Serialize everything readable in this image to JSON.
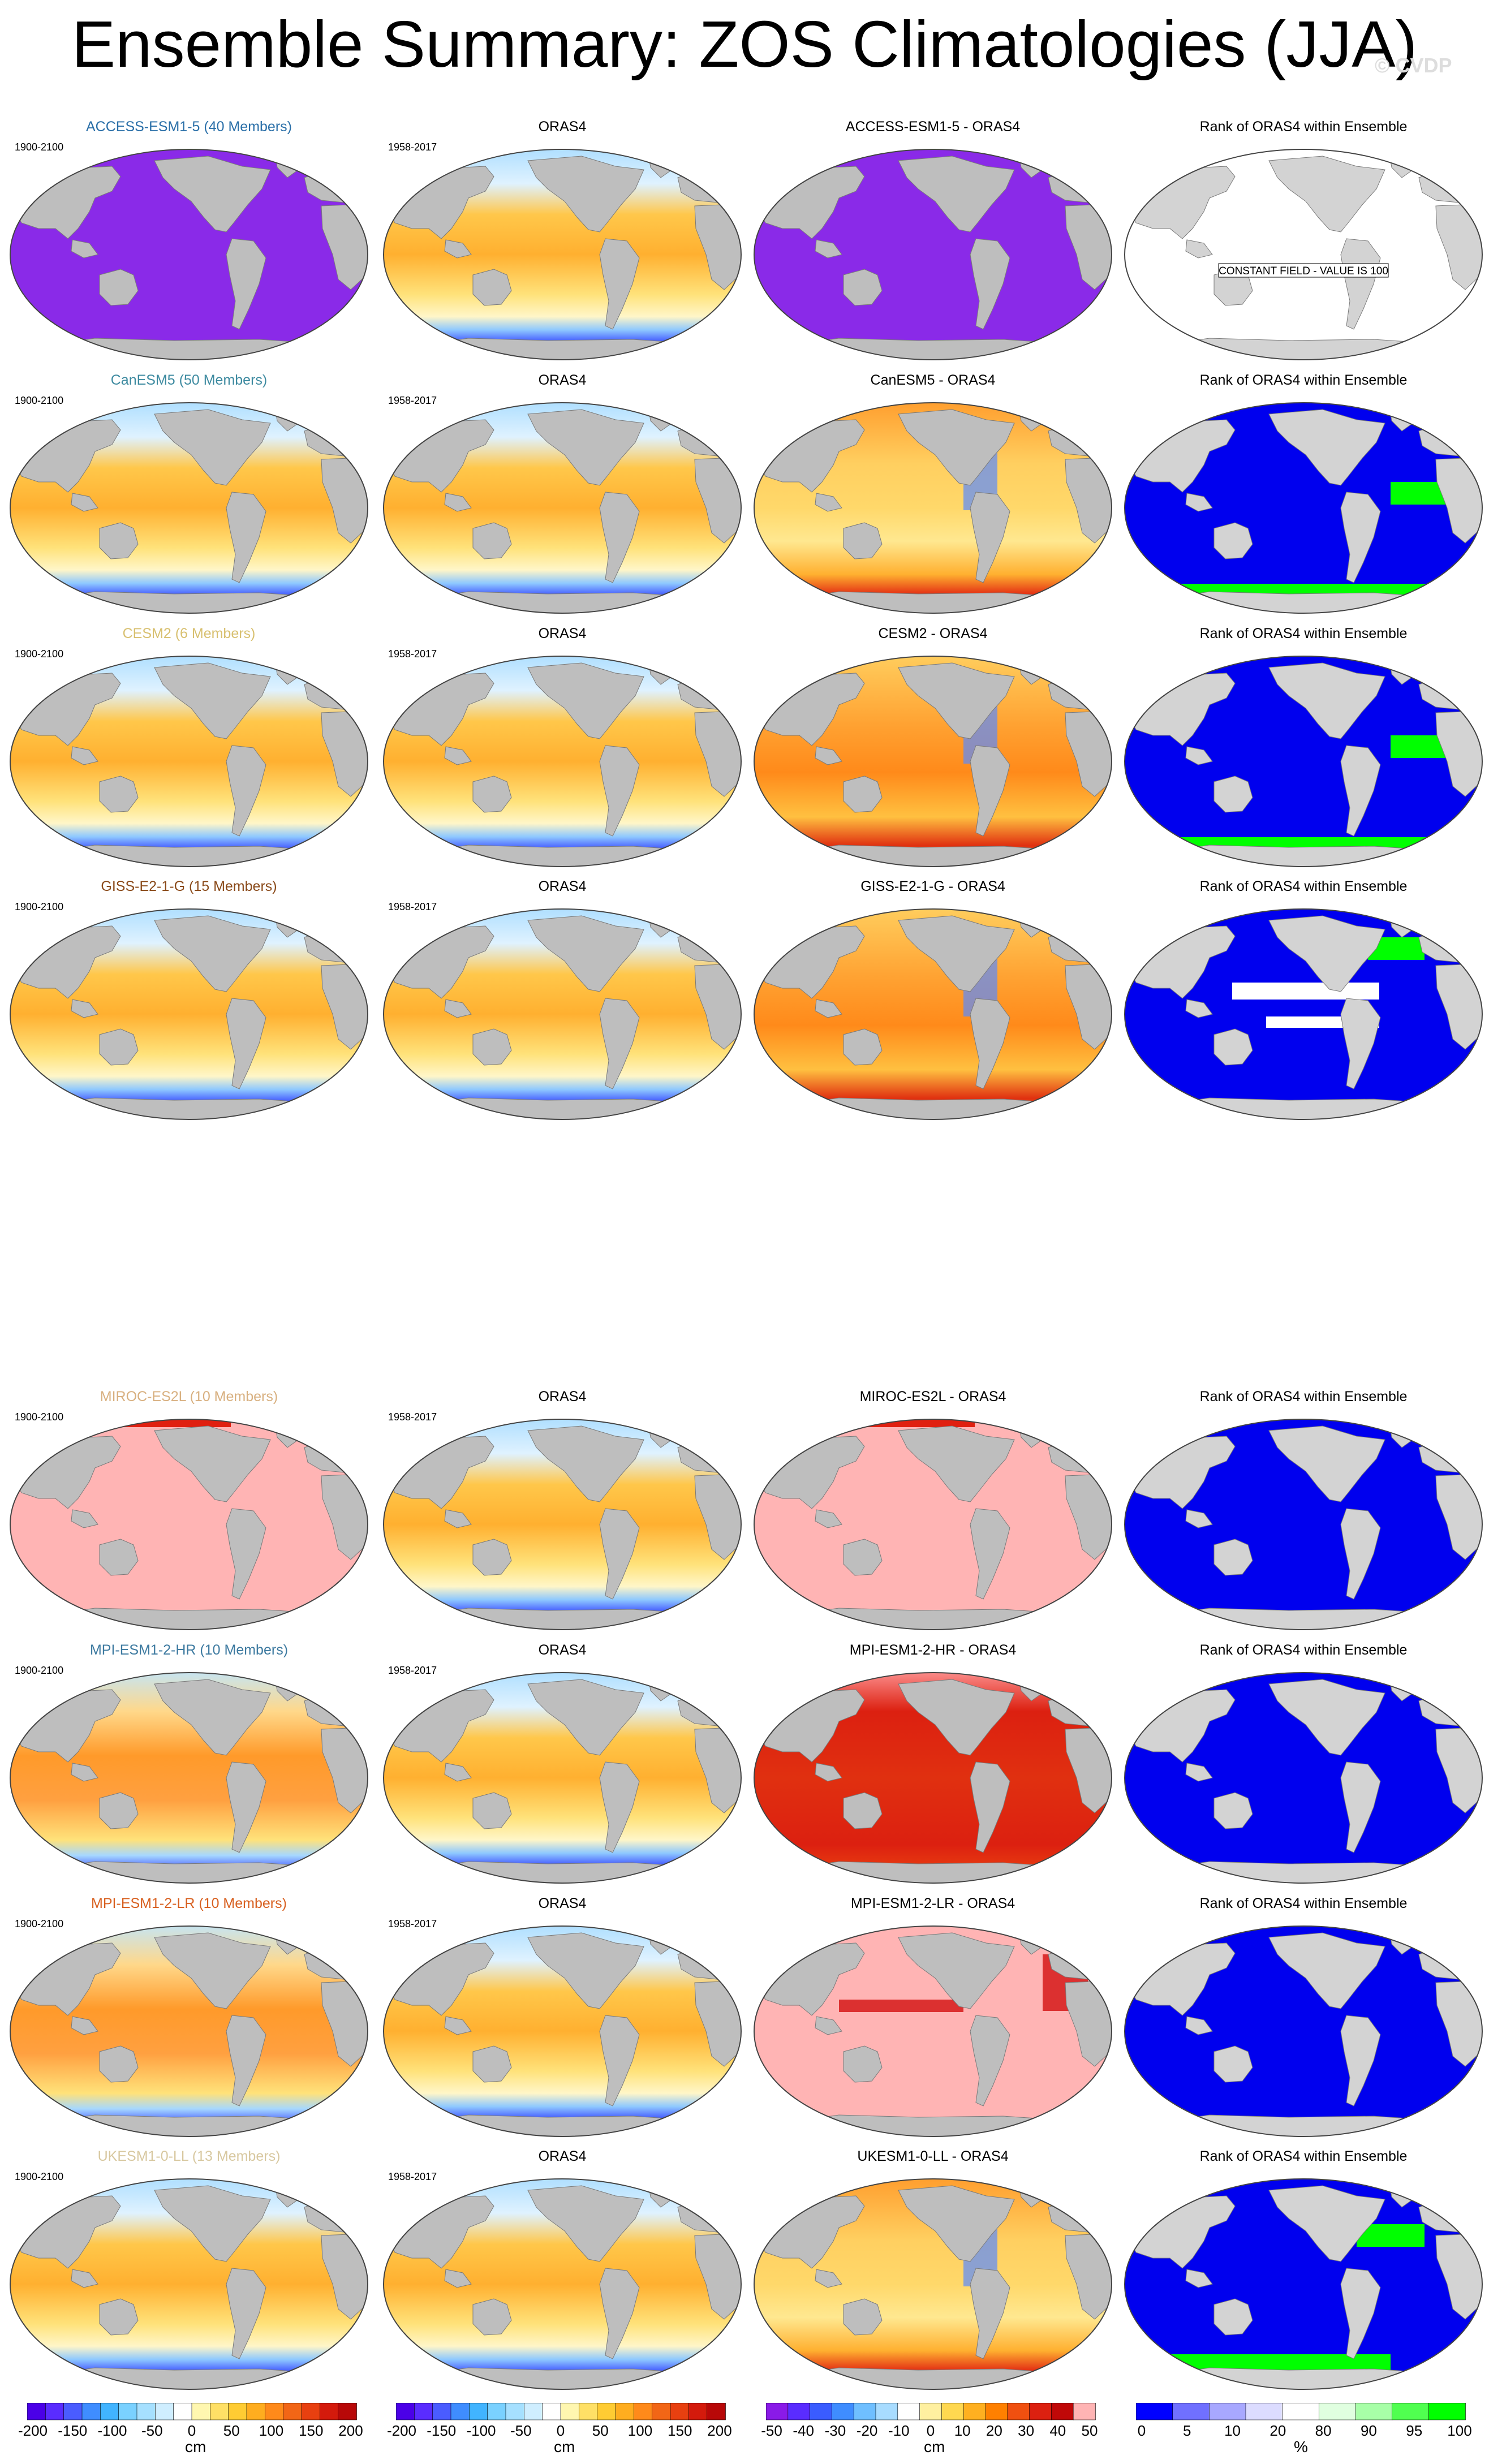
{
  "title": "Ensemble Summary: ZOS Climatologies (JJA)",
  "copyright": "© CVDP",
  "rows": [
    {
      "model": "ACCESS-ESM1-5 (40 Members)",
      "model_color": "#2a6fa8",
      "years": "1900-2100",
      "ref_title": "ORAS4",
      "ref_years": "1958-2017",
      "diff_title": "ACCESS-ESM1-5 - ORAS4",
      "rank_title": "Rank of ORAS4 within Ensemble",
      "model_style": "constant-violet",
      "diff_style": "constant-violet",
      "rank_style": "constant-white",
      "constant_note": "CONSTANT FIELD - VALUE IS 100"
    },
    {
      "model": "CanESM5 (50 Members)",
      "model_color": "#3d8aa0",
      "years": "1900-2100",
      "ref_title": "ORAS4",
      "ref_years": "1958-2017",
      "diff_title": "CanESM5 - ORAS4",
      "rank_title": "Rank of ORAS4 within Ensemble",
      "model_style": "ssh",
      "diff_style": "diff-warm",
      "rank_style": "rank-green-south"
    },
    {
      "model": "CESM2 (6 Members)",
      "model_color": "#d8c070",
      "years": "1900-2100",
      "ref_title": "ORAS4",
      "ref_years": "1958-2017",
      "diff_title": "CESM2 - ORAS4",
      "rank_title": "Rank of ORAS4 within Ensemble",
      "model_style": "ssh",
      "diff_style": "diff-mixed",
      "rank_style": "rank-green-south"
    },
    {
      "model": "GISS-E2-1-G (15 Members)",
      "model_color": "#8a4a1a",
      "years": "1900-2100",
      "ref_title": "ORAS4",
      "ref_years": "1958-2017",
      "diff_title": "GISS-E2-1-G - ORAS4",
      "rank_title": "Rank of ORAS4 within Ensemble",
      "model_style": "ssh",
      "diff_style": "diff-mixed",
      "rank_style": "rank-white-bands"
    },
    {
      "model": "MIROC-ES2L (10 Members)",
      "model_color": "#d8b080",
      "years": "1900-2100",
      "ref_title": "ORAS4",
      "ref_years": "1958-2017",
      "diff_title": "MIROC-ES2L - ORAS4",
      "rank_title": "Rank of ORAS4 within Ensemble",
      "model_style": "constant-pink",
      "diff_style": "constant-pink",
      "rank_style": "rank-blue"
    },
    {
      "model": "MPI-ESM1-2-HR (10 Members)",
      "model_color": "#3d7aa0",
      "years": "1900-2100",
      "ref_title": "ORAS4",
      "ref_years": "1958-2017",
      "diff_title": "MPI-ESM1-2-HR - ORAS4",
      "rank_title": "Rank of ORAS4 within Ensemble",
      "model_style": "ssh-warm",
      "diff_style": "diff-red",
      "rank_style": "rank-blue"
    },
    {
      "model": "MPI-ESM1-2-LR (10 Members)",
      "model_color": "#d86020",
      "years": "1900-2100",
      "ref_title": "ORAS4",
      "ref_years": "1958-2017",
      "diff_title": "MPI-ESM1-2-LR - ORAS4",
      "rank_title": "Rank of ORAS4 within Ensemble",
      "model_style": "ssh-warm",
      "diff_style": "diff-pink",
      "rank_style": "rank-blue"
    },
    {
      "model": "UKESM1-0-LL (13 Members)",
      "model_color": "#d8c8a0",
      "years": "1900-2100",
      "ref_title": "ORAS4",
      "ref_years": "1958-2017",
      "diff_title": "UKESM1-0-LL - ORAS4",
      "rank_title": "Rank of ORAS4 within Ensemble",
      "model_style": "ssh",
      "diff_style": "diff-warm",
      "rank_style": "rank-green-north"
    }
  ],
  "colorbars": [
    {
      "unit": "cm",
      "ticks": [
        "-200",
        "-150",
        "-100",
        "-50",
        "0",
        "50",
        "100",
        "150",
        "200"
      ],
      "colors": [
        "#4b00e8",
        "#5a2cff",
        "#4a5cff",
        "#3f8dff",
        "#41b4ff",
        "#7ad1ff",
        "#a6e0ff",
        "#cfeeff",
        "#ffffff",
        "#fff7b0",
        "#ffe066",
        "#ffcc33",
        "#ffad1f",
        "#ff8a1a",
        "#f26616",
        "#e84010",
        "#d41a0c",
        "#b80808"
      ]
    },
    {
      "unit": "cm",
      "ticks": [
        "-200",
        "-150",
        "-100",
        "-50",
        "0",
        "50",
        "100",
        "150",
        "200"
      ],
      "colors": [
        "#4b00e8",
        "#5a2cff",
        "#4a5cff",
        "#3f8dff",
        "#41b4ff",
        "#7ad1ff",
        "#a6e0ff",
        "#cfeeff",
        "#ffffff",
        "#fff7b0",
        "#ffe066",
        "#ffcc33",
        "#ffad1f",
        "#ff8a1a",
        "#f26616",
        "#e84010",
        "#d41a0c",
        "#b80808"
      ]
    },
    {
      "unit": "cm",
      "ticks": [
        "-50",
        "-40",
        "-30",
        "-20",
        "-10",
        "0",
        "10",
        "20",
        "30",
        "40",
        "50"
      ],
      "colors": [
        "#8a1ae8",
        "#5a2cff",
        "#3a5cff",
        "#3f8dff",
        "#6fbfff",
        "#a8dcff",
        "#ffffff",
        "#fff0a0",
        "#ffd850",
        "#ffb020",
        "#ff8000",
        "#f05010",
        "#dc2010",
        "#c00808",
        "#ffb4b4"
      ]
    },
    {
      "unit": "%",
      "ticks": [
        "0",
        "5",
        "10",
        "20",
        "80",
        "90",
        "95",
        "100"
      ],
      "colors": [
        "#0000ff",
        "#7070ff",
        "#a8a8ff",
        "#dcdcff",
        "#ffffff",
        "#e0ffe0",
        "#a8ffa8",
        "#50ff50",
        "#00ff00"
      ]
    }
  ]
}
